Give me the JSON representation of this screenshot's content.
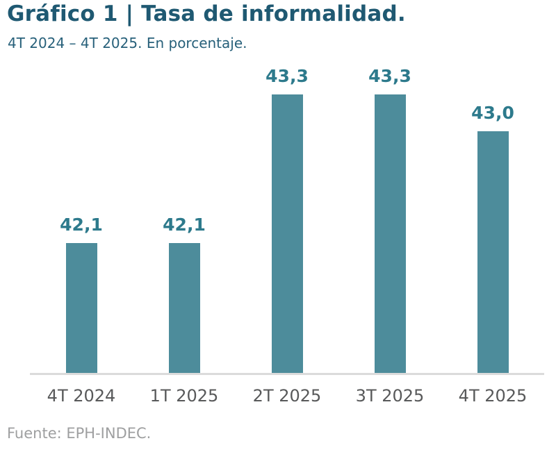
{
  "page": {
    "title": "Gráfico 1 | Tasa de informalidad.",
    "subtitle": "4T 2024 – 4T 2025. En porcentaje.",
    "source": "Fuente: EPH-INDEC."
  },
  "colors": {
    "title_text": "#1F5972",
    "subtitle_text": "#27607A",
    "bar_fill": "#4D8C9B",
    "value_label_text": "#2D7A8C",
    "axis_label_text": "#58595A",
    "baseline": "#DBDBDB",
    "source_text": "#9E9FA0"
  },
  "chart_data": {
    "type": "bar",
    "title": "Gráfico 1 | Tasa de informalidad.",
    "subtitle": "4T 2024 – 4T 2025. En porcentaje.",
    "categories": [
      "4T 2024",
      "1T 2025",
      "2T 2025",
      "3T 2025",
      "4T 2025"
    ],
    "values": [
      42.1,
      42.1,
      43.3,
      43.3,
      43.0
    ],
    "value_labels": [
      "42,1",
      "42,1",
      "43,3",
      "43,3",
      "43,0"
    ],
    "xlabel": "",
    "ylabel": "",
    "unit": "%",
    "ylim": [
      41.05,
      43.5
    ],
    "grid": false,
    "legend": false,
    "y_axis_visible": false,
    "data_labels": true,
    "source": "Fuente: EPH-INDEC."
  }
}
